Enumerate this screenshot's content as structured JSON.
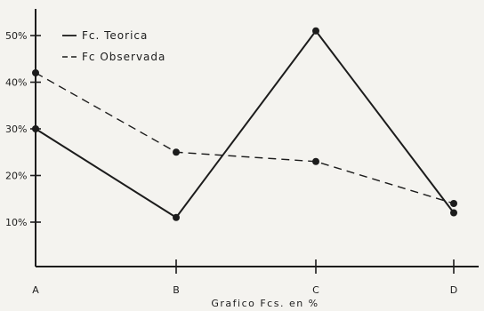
{
  "chart_data": {
    "type": "line",
    "title": "",
    "xlabel": "Grafico Fcs. en %",
    "ylabel": "",
    "categories": [
      "A",
      "B",
      "C",
      "D"
    ],
    "y_ticks": [
      10,
      20,
      30,
      40,
      50
    ],
    "y_tick_labels": [
      "10%",
      "20%",
      "30%",
      "40%",
      "50%"
    ],
    "ylim": [
      0,
      60
    ],
    "grid": false,
    "legend_position": "top-left",
    "series": [
      {
        "name": "Fc. Teorica",
        "values": [
          30,
          11,
          51,
          12
        ],
        "style": "solid",
        "color": "#1c1c1c"
      },
      {
        "name": "Fc Observada",
        "values": [
          42,
          25,
          23,
          14
        ],
        "style": "dashed",
        "color": "#1c1c1c"
      }
    ]
  }
}
